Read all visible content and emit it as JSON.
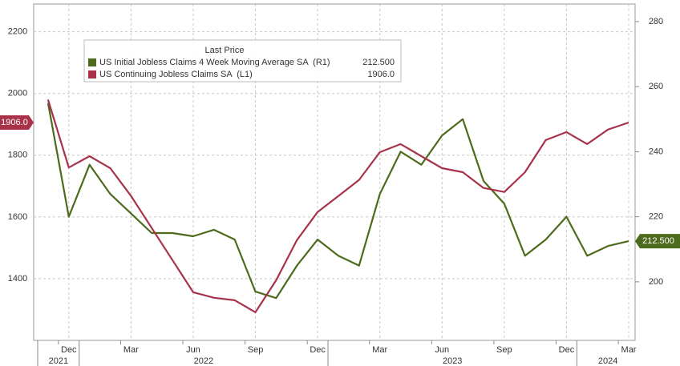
{
  "chart_data": {
    "type": "line",
    "legend_title": "Last Price",
    "x": [
      "2021-11",
      "2021-12",
      "2022-01",
      "2022-02",
      "2022-03",
      "2022-04",
      "2022-05",
      "2022-06",
      "2022-07",
      "2022-08",
      "2022-09",
      "2022-10",
      "2022-11",
      "2022-12",
      "2023-01",
      "2023-02",
      "2023-03",
      "2023-04",
      "2023-05",
      "2023-06",
      "2023-07",
      "2023-08",
      "2023-09",
      "2023-10",
      "2023-11",
      "2023-12",
      "2024-01",
      "2024-02",
      "2024-03"
    ],
    "series": [
      {
        "name": "US Initial Jobless Claims 4 Week Moving Average SA  (R1)",
        "color": "#4d6b1c",
        "axis": "y2",
        "last_label": "212.500",
        "values": [
          255,
          220,
          236,
          227,
          221,
          215,
          215,
          214,
          216,
          213,
          197,
          195,
          205,
          213,
          208,
          205,
          227,
          240,
          236,
          245,
          250,
          231,
          224,
          208,
          213,
          220,
          208,
          211,
          212.5
        ]
      },
      {
        "name": "US Continuing Jobless Claims SA  (L1)",
        "color": "#a8324a",
        "axis": "y",
        "last_label": "1906.0",
        "values": [
          1980,
          1760,
          1797,
          1758,
          1668,
          1564,
          1460,
          1356,
          1338,
          1330,
          1291,
          1395,
          1525,
          1616,
          1668,
          1720,
          1810,
          1836,
          1797,
          1758,
          1745,
          1694,
          1681,
          1745,
          1849,
          1875,
          1836,
          1883,
          1906
        ]
      }
    ],
    "ylim": [
      1200,
      2290
    ],
    "yticks": [
      1400,
      1600,
      1800,
      2000,
      2200
    ],
    "y2lim": [
      182,
      285.4
    ],
    "y2ticks": [
      200,
      220,
      240,
      260,
      280
    ],
    "xticks": [
      {
        "value": "2021-12",
        "label": "Dec"
      },
      {
        "value": "2022-03",
        "label": "Mar"
      },
      {
        "value": "2022-06",
        "label": "Jun"
      },
      {
        "value": "2022-09",
        "label": "Sep"
      },
      {
        "value": "2022-12",
        "label": "Dec"
      },
      {
        "value": "2023-03",
        "label": "Mar"
      },
      {
        "value": "2023-06",
        "label": "Jun"
      },
      {
        "value": "2023-09",
        "label": "Sep"
      },
      {
        "value": "2023-12",
        "label": "Dec"
      },
      {
        "value": "2024-03",
        "label": "Mar"
      }
    ],
    "year_labels": [
      "2021",
      "2022",
      "2023",
      "2024"
    ],
    "grid": true
  }
}
